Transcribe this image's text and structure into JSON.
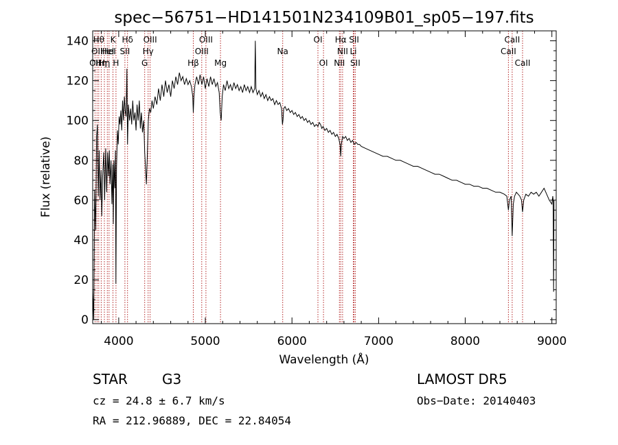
{
  "chart_data": {
    "type": "line",
    "title": "spec−56751−HD141501N234109B01_sp05−197.fits",
    "xlabel": "Wavelength (Å)",
    "ylabel": "Flux (relative)",
    "xlim": [
      3700,
      9050
    ],
    "ylim": [
      -2,
      145
    ],
    "x_ticks": [
      4000,
      5000,
      6000,
      7000,
      8000,
      9000
    ],
    "y_ticks": [
      0,
      20,
      40,
      60,
      80,
      100,
      120,
      140
    ],
    "grid": false,
    "line_color": "#000000",
    "marker_color": "#b22222",
    "series": [
      {
        "values": [
          [
            3700,
            15
          ],
          [
            3712,
            0
          ],
          [
            3722,
            65
          ],
          [
            3735,
            45
          ],
          [
            3745,
            92
          ],
          [
            3755,
            98
          ],
          [
            3765,
            62
          ],
          [
            3775,
            85
          ],
          [
            3785,
            60
          ],
          [
            3797,
            75
          ],
          [
            3805,
            52
          ],
          [
            3815,
            72
          ],
          [
            3828,
            84
          ],
          [
            3838,
            60
          ],
          [
            3850,
            86
          ],
          [
            3862,
            64
          ],
          [
            3872,
            84
          ],
          [
            3882,
            72
          ],
          [
            3892,
            85
          ],
          [
            3900,
            68
          ],
          [
            3912,
            80
          ],
          [
            3922,
            58
          ],
          [
            3932,
            78
          ],
          [
            3938,
            48
          ],
          [
            3945,
            80
          ],
          [
            3955,
            66
          ],
          [
            3962,
            85
          ],
          [
            3968,
            18
          ],
          [
            3975,
            76
          ],
          [
            3985,
            95
          ],
          [
            3995,
            88
          ],
          [
            4005,
            102
          ],
          [
            4015,
            98
          ],
          [
            4025,
            105
          ],
          [
            4035,
            95
          ],
          [
            4045,
            110
          ],
          [
            4055,
            100
          ],
          [
            4065,
            112
          ],
          [
            4075,
            105
          ],
          [
            4085,
            102
          ],
          [
            4095,
            126
          ],
          [
            4102,
            88
          ],
          [
            4112,
            108
          ],
          [
            4125,
            100
          ],
          [
            4138,
            106
          ],
          [
            4150,
            98
          ],
          [
            4162,
            110
          ],
          [
            4175,
            100
          ],
          [
            4188,
            104
          ],
          [
            4200,
            95
          ],
          [
            4212,
            108
          ],
          [
            4225,
            100
          ],
          [
            4238,
            110
          ],
          [
            4250,
            96
          ],
          [
            4262,
            104
          ],
          [
            4275,
            94
          ],
          [
            4290,
            100
          ],
          [
            4300,
            84
          ],
          [
            4310,
            76
          ],
          [
            4320,
            68
          ],
          [
            4330,
            82
          ],
          [
            4342,
            100
          ],
          [
            4355,
            106
          ],
          [
            4370,
            104
          ],
          [
            4385,
            110
          ],
          [
            4400,
            106
          ],
          [
            4420,
            112
          ],
          [
            4440,
            108
          ],
          [
            4460,
            116
          ],
          [
            4480,
            110
          ],
          [
            4500,
            118
          ],
          [
            4520,
            112
          ],
          [
            4540,
            120
          ],
          [
            4560,
            114
          ],
          [
            4580,
            118
          ],
          [
            4600,
            112
          ],
          [
            4620,
            120
          ],
          [
            4640,
            116
          ],
          [
            4660,
            122
          ],
          [
            4680,
            118
          ],
          [
            4700,
            124
          ],
          [
            4720,
            120
          ],
          [
            4740,
            122
          ],
          [
            4760,
            118
          ],
          [
            4780,
            121
          ],
          [
            4800,
            118
          ],
          [
            4820,
            120
          ],
          [
            4840,
            117
          ],
          [
            4855,
            112
          ],
          [
            4861,
            104
          ],
          [
            4868,
            112
          ],
          [
            4880,
            118
          ],
          [
            4900,
            122
          ],
          [
            4920,
            118
          ],
          [
            4940,
            123
          ],
          [
            4960,
            118
          ],
          [
            4980,
            122
          ],
          [
            5000,
            116
          ],
          [
            5020,
            121
          ],
          [
            5040,
            117
          ],
          [
            5060,
            122
          ],
          [
            5080,
            118
          ],
          [
            5100,
            121
          ],
          [
            5120,
            117
          ],
          [
            5140,
            119
          ],
          [
            5160,
            114
          ],
          [
            5172,
            104
          ],
          [
            5183,
            100
          ],
          [
            5195,
            112
          ],
          [
            5210,
            118
          ],
          [
            5230,
            115
          ],
          [
            5250,
            120
          ],
          [
            5270,
            116
          ],
          [
            5290,
            118
          ],
          [
            5310,
            115
          ],
          [
            5330,
            119
          ],
          [
            5350,
            116
          ],
          [
            5370,
            118
          ],
          [
            5390,
            115
          ],
          [
            5410,
            117
          ],
          [
            5430,
            114
          ],
          [
            5450,
            118
          ],
          [
            5470,
            115
          ],
          [
            5490,
            117
          ],
          [
            5510,
            114
          ],
          [
            5530,
            117
          ],
          [
            5550,
            114
          ],
          [
            5570,
            116
          ],
          [
            5577,
            140
          ],
          [
            5584,
            116
          ],
          [
            5600,
            113
          ],
          [
            5620,
            115
          ],
          [
            5640,
            112
          ],
          [
            5660,
            114
          ],
          [
            5680,
            111
          ],
          [
            5700,
            113
          ],
          [
            5720,
            110
          ],
          [
            5740,
            112
          ],
          [
            5760,
            110
          ],
          [
            5780,
            111
          ],
          [
            5800,
            108
          ],
          [
            5820,
            110
          ],
          [
            5840,
            108
          ],
          [
            5860,
            109
          ],
          [
            5880,
            106
          ],
          [
            5890,
            98
          ],
          [
            5896,
            100
          ],
          [
            5905,
            106
          ],
          [
            5920,
            107
          ],
          [
            5940,
            105
          ],
          [
            5960,
            106
          ],
          [
            5980,
            104
          ],
          [
            6000,
            105
          ],
          [
            6020,
            103
          ],
          [
            6040,
            104
          ],
          [
            6060,
            102
          ],
          [
            6080,
            103
          ],
          [
            6100,
            101
          ],
          [
            6120,
            102
          ],
          [
            6140,
            100
          ],
          [
            6160,
            101
          ],
          [
            6180,
            99
          ],
          [
            6200,
            100
          ],
          [
            6220,
            98
          ],
          [
            6240,
            99
          ],
          [
            6260,
            97
          ],
          [
            6280,
            98
          ],
          [
            6300,
            97
          ],
          [
            6315,
            99
          ],
          [
            6330,
            98
          ],
          [
            6345,
            96
          ],
          [
            6360,
            97
          ],
          [
            6380,
            95
          ],
          [
            6400,
            96
          ],
          [
            6420,
            94
          ],
          [
            6440,
            95
          ],
          [
            6460,
            93
          ],
          [
            6480,
            94
          ],
          [
            6500,
            92
          ],
          [
            6520,
            93
          ],
          [
            6540,
            91
          ],
          [
            6555,
            88
          ],
          [
            6563,
            82
          ],
          [
            6570,
            88
          ],
          [
            6585,
            92
          ],
          [
            6600,
            91
          ],
          [
            6620,
            92
          ],
          [
            6640,
            90
          ],
          [
            6660,
            91
          ],
          [
            6680,
            89
          ],
          [
            6700,
            90
          ],
          [
            6720,
            88
          ],
          [
            6740,
            89
          ],
          [
            6760,
            88
          ],
          [
            6780,
            88
          ],
          [
            6800,
            87
          ],
          [
            6850,
            86
          ],
          [
            6900,
            85
          ],
          [
            6950,
            84
          ],
          [
            7000,
            83
          ],
          [
            7050,
            82
          ],
          [
            7100,
            82
          ],
          [
            7150,
            81
          ],
          [
            7200,
            80
          ],
          [
            7250,
            80
          ],
          [
            7300,
            79
          ],
          [
            7350,
            78
          ],
          [
            7400,
            77
          ],
          [
            7450,
            77
          ],
          [
            7500,
            76
          ],
          [
            7550,
            75
          ],
          [
            7600,
            74
          ],
          [
            7650,
            73
          ],
          [
            7700,
            73
          ],
          [
            7750,
            72
          ],
          [
            7800,
            71
          ],
          [
            7850,
            70
          ],
          [
            7900,
            70
          ],
          [
            7950,
            69
          ],
          [
            8000,
            68
          ],
          [
            8050,
            68
          ],
          [
            8100,
            67
          ],
          [
            8150,
            67
          ],
          [
            8200,
            66
          ],
          [
            8250,
            66
          ],
          [
            8300,
            65
          ],
          [
            8350,
            64
          ],
          [
            8400,
            64
          ],
          [
            8450,
            63
          ],
          [
            8480,
            62
          ],
          [
            8498,
            55
          ],
          [
            8510,
            60
          ],
          [
            8530,
            62
          ],
          [
            8542,
            42
          ],
          [
            8555,
            58
          ],
          [
            8570,
            62
          ],
          [
            8590,
            64
          ],
          [
            8610,
            63
          ],
          [
            8630,
            62
          ],
          [
            8650,
            60
          ],
          [
            8662,
            54
          ],
          [
            8675,
            60
          ],
          [
            8700,
            63
          ],
          [
            8730,
            62
          ],
          [
            8760,
            64
          ],
          [
            8790,
            63
          ],
          [
            8820,
            64
          ],
          [
            8850,
            62
          ],
          [
            8880,
            64
          ],
          [
            8910,
            66
          ],
          [
            8940,
            63
          ],
          [
            8970,
            60
          ],
          [
            9000,
            58
          ],
          [
            9010,
            62
          ],
          [
            9015,
            60
          ],
          [
            9020,
            14
          ],
          [
            9025,
            60
          ]
        ]
      }
    ],
    "line_markers": [
      {
        "wavelength": 3727,
        "label": "OII",
        "row": 2
      },
      {
        "wavelength": 3750,
        "label": "OII",
        "row": 1
      },
      {
        "wavelength": 3770,
        "label": "Hθ",
        "row": 0
      },
      {
        "wavelength": 3798,
        "label": "Hη",
        "row": 2
      },
      {
        "wavelength": 3835,
        "label": "Hη",
        "row": 2
      },
      {
        "wavelength": 3869,
        "label": "HeI",
        "row": 1
      },
      {
        "wavelength": 3889,
        "label": "HeI",
        "row": 1
      },
      {
        "wavelength": 3934,
        "label": "K",
        "row": 0
      },
      {
        "wavelength": 3969,
        "label": "H",
        "row": 2
      },
      {
        "wavelength": 4072,
        "label": "SII",
        "row": 1
      },
      {
        "wavelength": 4102,
        "label": "Hδ",
        "row": 0
      },
      {
        "wavelength": 4300,
        "label": "G",
        "row": 2
      },
      {
        "wavelength": 4340,
        "label": "Hγ",
        "row": 1
      },
      {
        "wavelength": 4363,
        "label": "OIII",
        "row": 0
      },
      {
        "wavelength": 4861,
        "label": "Hβ",
        "row": 2
      },
      {
        "wavelength": 4959,
        "label": "OIII",
        "row": 1
      },
      {
        "wavelength": 5007,
        "label": "OIII",
        "row": 0
      },
      {
        "wavelength": 5175,
        "label": "Mg",
        "row": 2
      },
      {
        "wavelength": 5893,
        "label": "Na",
        "row": 1
      },
      {
        "wavelength": 6300,
        "label": "OI",
        "row": 0
      },
      {
        "wavelength": 6364,
        "label": "OI",
        "row": 2
      },
      {
        "wavelength": 6548,
        "label": "NII",
        "row": 2
      },
      {
        "wavelength": 6563,
        "label": "Hα",
        "row": 0
      },
      {
        "wavelength": 6584,
        "label": "NII",
        "row": 1
      },
      {
        "wavelength": 6708,
        "label": "Li",
        "row": 1
      },
      {
        "wavelength": 6717,
        "label": "SII",
        "row": 0
      },
      {
        "wavelength": 6731,
        "label": "SII",
        "row": 2
      },
      {
        "wavelength": 8498,
        "label": "CaII",
        "row": 1
      },
      {
        "wavelength": 8542,
        "label": "CaII",
        "row": 0
      },
      {
        "wavelength": 8662,
        "label": "CaII",
        "row": 2
      }
    ]
  },
  "footer": {
    "class_label": "STAR",
    "subclass": "G3",
    "survey": "LAMOST  DR5",
    "cz_line": "cz = 24.8 ± 6.7 km/s",
    "obs_date": "Obs−Date: 20140403",
    "coords": "RA = 212.96889, DEC =  22.84054"
  }
}
